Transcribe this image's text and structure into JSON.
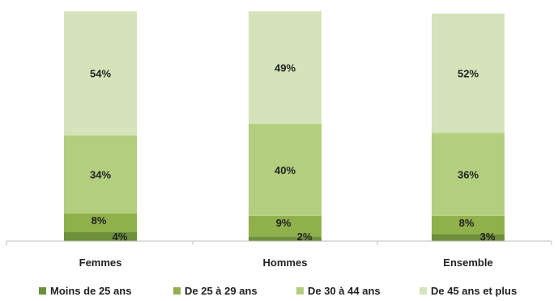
{
  "chart_data": {
    "type": "bar",
    "stacked": true,
    "categories": [
      "Femmes",
      "Hommes",
      "Ensemble"
    ],
    "series": [
      {
        "name": "Moins de 25 ans",
        "values": [
          4,
          2,
          3
        ],
        "labels": [
          "4%",
          "2%",
          "3%"
        ],
        "color": "#6e8f3c"
      },
      {
        "name": "De 25 à 29 ans",
        "values": [
          8,
          9,
          8
        ],
        "labels": [
          "8%",
          "9%",
          "8%"
        ],
        "color": "#90b04b"
      },
      {
        "name": "De 30 à 44 ans",
        "values": [
          34,
          40,
          36
        ],
        "labels": [
          "34%",
          "40%",
          "36%"
        ],
        "color": "#b3ce7e"
      },
      {
        "name": "De 45 ans et plus",
        "values": [
          54,
          49,
          52
        ],
        "labels": [
          "54%",
          "49%",
          "52%"
        ],
        "color": "#d4e3b9"
      }
    ],
    "ylim": [
      0,
      100
    ],
    "grid": false,
    "legend": "bottom"
  }
}
